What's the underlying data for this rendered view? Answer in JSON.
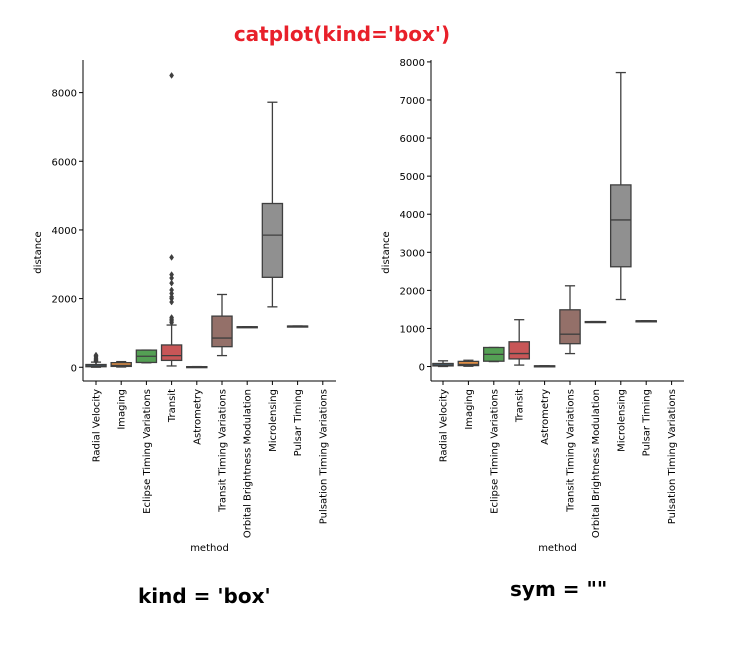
{
  "title": "catplot(kind='box')",
  "captions": [
    "kind = 'box'",
    "sym = \"\""
  ],
  "colors": {
    "title": "#e8202a",
    "palette": [
      "#3274a1",
      "#e1812c",
      "#3a923a",
      "#c03d3e",
      "#9372b2",
      "#845b53",
      "#d684bd",
      "#7f7f7f",
      "#a9aa35",
      "#2eabb8"
    ]
  },
  "chart_data": [
    {
      "type": "box",
      "xlabel": "method",
      "ylabel": "distance",
      "ylim": [
        -400,
        8950
      ],
      "yticks": [
        0,
        2000,
        4000,
        6000,
        8000
      ],
      "yticklabels": [
        "0",
        "2000",
        "4000",
        "6000",
        "8000"
      ],
      "show_outliers": true,
      "categories": [
        "Radial Velocity",
        "Imaging",
        "Eclipse Timing Variations",
        "Transit",
        "Astrometry",
        "Transit Timing Variations",
        "Orbital Brightness Modulation",
        "Microlensing",
        "Pulsar Timing",
        "Pulsation Timing Variations"
      ],
      "boxes": [
        {
          "whislo": 1.4,
          "q1": 16,
          "med": 40,
          "q3": 80,
          "whishi": 150,
          "fliers": [
            180,
            200,
            230,
            260,
            300,
            330,
            354
          ]
        },
        {
          "whislo": 7.7,
          "q1": 25,
          "med": 55,
          "q3": 135,
          "whishi": 165,
          "fliers": []
        },
        {
          "whislo": 130,
          "q1": 140,
          "med": 320,
          "q3": 500,
          "whishi": 500,
          "fliers": []
        },
        {
          "whislo": 38,
          "q1": 200,
          "med": 340,
          "q3": 650,
          "whishi": 1230,
          "fliers": [
            1300,
            1350,
            1400,
            1450,
            1900,
            2000,
            2050,
            2150,
            2250,
            2450,
            2600,
            2700,
            3200,
            8500
          ]
        },
        {
          "whislo": 14,
          "q1": 15,
          "med": 17,
          "q3": 18,
          "whishi": 20,
          "fliers": []
        },
        {
          "whislo": 340,
          "q1": 600,
          "med": 850,
          "q3": 1490,
          "whishi": 2120,
          "fliers": []
        },
        {
          "whislo": 1180,
          "q1": 1180,
          "med": 1180,
          "q3": 1180,
          "whishi": 1180,
          "fliers": []
        },
        {
          "whislo": 1760,
          "q1": 2620,
          "med": 3850,
          "q3": 4770,
          "whishi": 7720,
          "fliers": []
        },
        {
          "whislo": 1200,
          "q1": 1200,
          "med": 1200,
          "q3": 1200,
          "whishi": 1200,
          "fliers": []
        },
        null
      ]
    },
    {
      "type": "box",
      "xlabel": "method",
      "ylabel": "distance",
      "ylim": [
        -380,
        8050
      ],
      "yticks": [
        0,
        1000,
        2000,
        3000,
        4000,
        5000,
        6000,
        7000,
        8000
      ],
      "yticklabels": [
        "0",
        "1000",
        "2000",
        "3000",
        "4000",
        "5000",
        "6000",
        "7000",
        "8000"
      ],
      "show_outliers": false,
      "categories": [
        "Radial Velocity",
        "Imaging",
        "Eclipse Timing Variations",
        "Transit",
        "Astrometry",
        "Transit Timing Variations",
        "Orbital Brightness Modulation",
        "Microlensing",
        "Pulsar Timing",
        "Pulsation Timing Variations"
      ],
      "boxes": [
        {
          "whislo": 1.4,
          "q1": 16,
          "med": 40,
          "q3": 80,
          "whishi": 150
        },
        {
          "whislo": 7.7,
          "q1": 25,
          "med": 55,
          "q3": 135,
          "whishi": 165
        },
        {
          "whislo": 130,
          "q1": 140,
          "med": 320,
          "q3": 500,
          "whishi": 500
        },
        {
          "whislo": 38,
          "q1": 200,
          "med": 340,
          "q3": 650,
          "whishi": 1230
        },
        {
          "whislo": 14,
          "q1": 15,
          "med": 17,
          "q3": 18,
          "whishi": 20
        },
        {
          "whislo": 340,
          "q1": 600,
          "med": 850,
          "q3": 1490,
          "whishi": 2120
        },
        {
          "whislo": 1180,
          "q1": 1180,
          "med": 1180,
          "q3": 1180,
          "whishi": 1180
        },
        {
          "whislo": 1760,
          "q1": 2620,
          "med": 3850,
          "q3": 4770,
          "whishi": 7720
        },
        {
          "whislo": 1200,
          "q1": 1200,
          "med": 1200,
          "q3": 1200,
          "whishi": 1200
        },
        null
      ]
    }
  ]
}
